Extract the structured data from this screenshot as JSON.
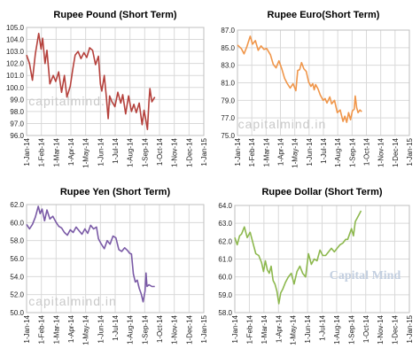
{
  "watermark_text": "capitalmind.in",
  "brand_watermark_text": "Capital Mind",
  "chart_data": [
    {
      "type": "line",
      "title": "Rupee Pound (Short Term)",
      "color": "#b5413c",
      "ylim": [
        96,
        105
      ],
      "yticks": [
        "96.0",
        "97.0",
        "98.0",
        "99.0",
        "100.0",
        "101.0",
        "102.0",
        "103.0",
        "104.0",
        "105.0"
      ],
      "xlim": [
        0,
        365
      ],
      "xtick_labels": [
        "1-Jan-14",
        "1-Feb-14",
        "1-Mar-14",
        "1-Apr-14",
        "1-May-14",
        "1-Jun-14",
        "1-Jul-14",
        "1-Aug-14",
        "1-Sep-14",
        "1-Oct-14",
        "1-Nov-14",
        "1-Dec-14",
        "1-Jan-15"
      ],
      "watermark": "upper",
      "points": [
        [
          0,
          102.7
        ],
        [
          6,
          102.0
        ],
        [
          12,
          100.6
        ],
        [
          18,
          102.8
        ],
        [
          25,
          104.5
        ],
        [
          30,
          103.2
        ],
        [
          33,
          104.1
        ],
        [
          38,
          102.0
        ],
        [
          42,
          103.1
        ],
        [
          48,
          100.3
        ],
        [
          55,
          101.0
        ],
        [
          60,
          100.5
        ],
        [
          66,
          101.3
        ],
        [
          72,
          99.6
        ],
        [
          78,
          101.0
        ],
        [
          83,
          99.2
        ],
        [
          90,
          100.1
        ],
        [
          95,
          101.5
        ],
        [
          100,
          102.7
        ],
        [
          106,
          103.0
        ],
        [
          112,
          102.4
        ],
        [
          118,
          102.9
        ],
        [
          124,
          102.5
        ],
        [
          130,
          103.3
        ],
        [
          136,
          103.1
        ],
        [
          142,
          101.9
        ],
        [
          148,
          102.6
        ],
        [
          152,
          100.3
        ],
        [
          155,
          99.7
        ],
        [
          160,
          101.0
        ],
        [
          164,
          99.3
        ],
        [
          168,
          97.4
        ],
        [
          171,
          99.3
        ],
        [
          176,
          98.8
        ],
        [
          182,
          98.4
        ],
        [
          188,
          99.6
        ],
        [
          194,
          98.7
        ],
        [
          198,
          99.4
        ],
        [
          204,
          97.8
        ],
        [
          210,
          99.3
        ],
        [
          216,
          98.0
        ],
        [
          221,
          98.6
        ],
        [
          226,
          97.9
        ],
        [
          232,
          98.7
        ],
        [
          238,
          96.9
        ],
        [
          242,
          98.1
        ],
        [
          246,
          97.2
        ],
        [
          249,
          96.5
        ],
        [
          252,
          98.8
        ],
        [
          254,
          99.9
        ],
        [
          258,
          98.8
        ],
        [
          264,
          99.2
        ]
      ]
    },
    {
      "type": "line",
      "title": "Rupee Euro(Short Term)",
      "color": "#f0964a",
      "ylim": [
        75,
        87
      ],
      "yticks": [
        "75.0",
        "77.0",
        "79.0",
        "81.0",
        "83.0",
        "85.0",
        "87.0"
      ],
      "xlim": [
        0,
        365
      ],
      "xtick_labels": [
        "1-Jan-14",
        "1-Feb-14",
        "1-Mar-14",
        "1-Apr-14",
        "1-May-14",
        "1-Jun-14",
        "1-Jul-14",
        "1-Aug-14",
        "1-Sep-14",
        "1-Oct-14",
        "1-Nov-14",
        "1-Dec-14",
        "1-Jan-15"
      ],
      "watermark": "lower",
      "points": [
        [
          0,
          85.3
        ],
        [
          8,
          84.9
        ],
        [
          14,
          84.3
        ],
        [
          20,
          85.1
        ],
        [
          27,
          86.3
        ],
        [
          32,
          85.4
        ],
        [
          38,
          85.8
        ],
        [
          44,
          84.7
        ],
        [
          50,
          85.2
        ],
        [
          56,
          84.8
        ],
        [
          62,
          84.9
        ],
        [
          70,
          84.2
        ],
        [
          76,
          83.1
        ],
        [
          82,
          82.7
        ],
        [
          88,
          83.5
        ],
        [
          94,
          82.6
        ],
        [
          100,
          81.5
        ],
        [
          106,
          80.9
        ],
        [
          112,
          80.4
        ],
        [
          118,
          80.9
        ],
        [
          124,
          80.1
        ],
        [
          128,
          82.4
        ],
        [
          132,
          82.5
        ],
        [
          136,
          83.3
        ],
        [
          141,
          82.6
        ],
        [
          146,
          82.3
        ],
        [
          151,
          81.1
        ],
        [
          156,
          80.6
        ],
        [
          160,
          80.9
        ],
        [
          163,
          80.2
        ],
        [
          166,
          80.8
        ],
        [
          171,
          80.3
        ],
        [
          176,
          79.6
        ],
        [
          182,
          79.0
        ],
        [
          186,
          79.2
        ],
        [
          190,
          78.7
        ],
        [
          196,
          79.4
        ],
        [
          200,
          78.6
        ],
        [
          206,
          79.0
        ],
        [
          212,
          77.6
        ],
        [
          218,
          77.9
        ],
        [
          224,
          76.6
        ],
        [
          228,
          77.2
        ],
        [
          232,
          76.5
        ],
        [
          236,
          77.6
        ],
        [
          240,
          76.8
        ],
        [
          244,
          77.8
        ],
        [
          248,
          78.0
        ],
        [
          250,
          79.5
        ],
        [
          253,
          78.2
        ],
        [
          256,
          77.6
        ],
        [
          260,
          77.9
        ],
        [
          264,
          77.7
        ]
      ]
    },
    {
      "type": "line",
      "title": "Rupee Yen (Short Term)",
      "color": "#7a5aa6",
      "ylim": [
        50,
        62
      ],
      "yticks": [
        "50.0",
        "52.0",
        "54.0",
        "56.0",
        "58.0",
        "60.0",
        "62.0"
      ],
      "xlim": [
        0,
        365
      ],
      "xtick_labels": [
        "1-Jan-14",
        "1-Feb-14",
        "1-Mar-14",
        "1-Apr-14",
        "1-May-14",
        "1-Jun-14",
        "1-Jul-14",
        "1-Aug-14",
        "1-Sep-14",
        "1-Oct-14",
        "1-Nov-14",
        "1-Dec-14",
        "1-Jan-15"
      ],
      "watermark": "lower",
      "points": [
        [
          0,
          59.8
        ],
        [
          6,
          59.3
        ],
        [
          12,
          59.8
        ],
        [
          18,
          60.6
        ],
        [
          24,
          61.8
        ],
        [
          28,
          61.0
        ],
        [
          32,
          61.5
        ],
        [
          37,
          60.2
        ],
        [
          42,
          61.4
        ],
        [
          48,
          60.4
        ],
        [
          54,
          60.7
        ],
        [
          60,
          60.1
        ],
        [
          66,
          59.6
        ],
        [
          72,
          59.4
        ],
        [
          78,
          58.9
        ],
        [
          84,
          58.6
        ],
        [
          90,
          59.2
        ],
        [
          96,
          58.9
        ],
        [
          102,
          59.5
        ],
        [
          108,
          59.1
        ],
        [
          114,
          58.7
        ],
        [
          120,
          59.3
        ],
        [
          126,
          58.8
        ],
        [
          132,
          59.7
        ],
        [
          138,
          59.3
        ],
        [
          144,
          59.5
        ],
        [
          148,
          58.2
        ],
        [
          154,
          57.6
        ],
        [
          160,
          57.1
        ],
        [
          166,
          58.0
        ],
        [
          172,
          57.6
        ],
        [
          178,
          58.5
        ],
        [
          184,
          58.3
        ],
        [
          190,
          57.0
        ],
        [
          196,
          56.8
        ],
        [
          202,
          57.2
        ],
        [
          208,
          56.9
        ],
        [
          212,
          56.6
        ],
        [
          216,
          56.5
        ],
        [
          220,
          54.3
        ],
        [
          224,
          53.4
        ],
        [
          228,
          53.6
        ],
        [
          232,
          52.7
        ],
        [
          236,
          52.1
        ],
        [
          240,
          51.2
        ],
        [
          244,
          52.4
        ],
        [
          246,
          54.4
        ],
        [
          248,
          52.9
        ],
        [
          252,
          53.1
        ],
        [
          258,
          52.9
        ],
        [
          264,
          52.9
        ]
      ]
    },
    {
      "type": "line",
      "title": "Rupee Dollar (Short Term)",
      "color": "#8db84e",
      "ylim": [
        58,
        64
      ],
      "yticks": [
        "58.0",
        "59.0",
        "60.0",
        "61.0",
        "62.0",
        "63.0",
        "64.0"
      ],
      "xlim": [
        0,
        365
      ],
      "xtick_labels": [
        "1-Jan-14",
        "1-Feb-14",
        "1-Mar-14",
        "1-Apr-14",
        "1-May-14",
        "1-Jun-14",
        "1-Jul-14",
        "1-Aug-14",
        "1-Sep-14",
        "1-Oct-14",
        "1-Nov-14",
        "1-Dec-14",
        "1-Jan-15"
      ],
      "watermark": "brand",
      "points": [
        [
          0,
          62.2
        ],
        [
          5,
          61.8
        ],
        [
          10,
          62.3
        ],
        [
          14,
          62.4
        ],
        [
          20,
          62.8
        ],
        [
          26,
          62.2
        ],
        [
          32,
          62.5
        ],
        [
          38,
          61.9
        ],
        [
          44,
          61.3
        ],
        [
          50,
          61.2
        ],
        [
          56,
          60.8
        ],
        [
          60,
          60.3
        ],
        [
          64,
          60.9
        ],
        [
          68,
          60.4
        ],
        [
          72,
          60.2
        ],
        [
          76,
          60.6
        ],
        [
          80,
          59.8
        ],
        [
          84,
          59.6
        ],
        [
          88,
          59.2
        ],
        [
          92,
          58.5
        ],
        [
          96,
          59.1
        ],
        [
          100,
          59.3
        ],
        [
          106,
          59.7
        ],
        [
          112,
          60.0
        ],
        [
          118,
          60.2
        ],
        [
          124,
          59.6
        ],
        [
          130,
          60.3
        ],
        [
          136,
          60.6
        ],
        [
          142,
          60.2
        ],
        [
          148,
          60.0
        ],
        [
          154,
          61.3
        ],
        [
          160,
          60.7
        ],
        [
          166,
          61.0
        ],
        [
          172,
          60.9
        ],
        [
          178,
          61.5
        ],
        [
          184,
          61.2
        ],
        [
          190,
          61.2
        ],
        [
          196,
          61.4
        ],
        [
          202,
          61.6
        ],
        [
          208,
          61.4
        ],
        [
          214,
          61.6
        ],
        [
          220,
          61.8
        ],
        [
          226,
          61.9
        ],
        [
          232,
          62.1
        ],
        [
          236,
          62.1
        ],
        [
          240,
          62.4
        ],
        [
          244,
          62.7
        ],
        [
          248,
          62.3
        ],
        [
          252,
          63.1
        ],
        [
          256,
          63.3
        ],
        [
          260,
          63.5
        ],
        [
          264,
          63.7
        ]
      ]
    }
  ]
}
